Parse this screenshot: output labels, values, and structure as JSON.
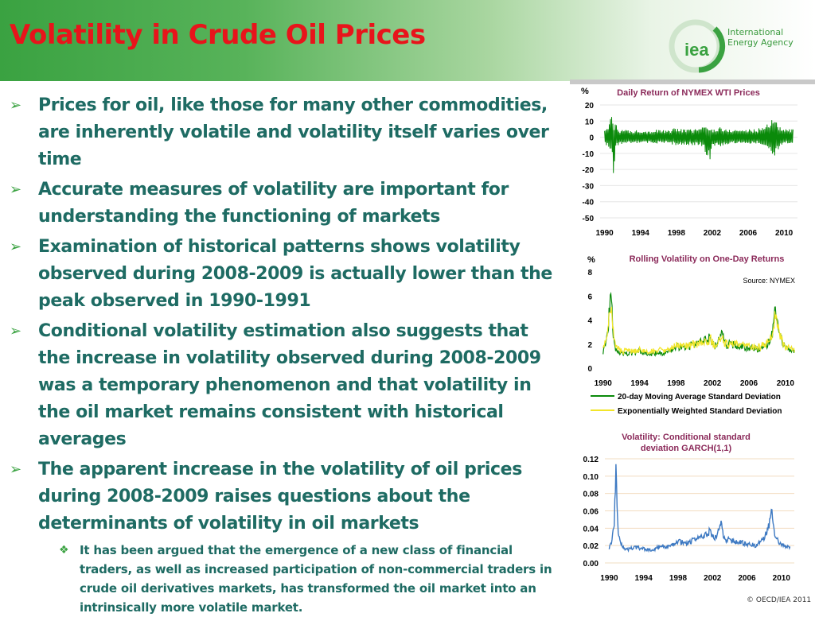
{
  "slide": {
    "title": "Volatility in Crude Oil Prices",
    "copyright": "© OECD/IEA 2011",
    "logo": {
      "mark": "iea",
      "line1": "International",
      "line2": "Energy Agency"
    }
  },
  "bullets": [
    "Prices for oil, like those for many other commodities, are inherently volatile and volatility itself varies over time",
    "Accurate measures of volatility are important for understanding the functioning of markets",
    "Examination of historical patterns shows volatility observed during 2008-2009 is actually lower than the peak observed in 1990-1991",
    "Conditional volatility estimation also suggests that the increase in volatility observed during 2008-2009 was a temporary phenomenon and that volatility in the oil market remains consistent with historical averages",
    "The apparent increase in the volatility of oil prices during 2008-2009 raises questions about the determinants of volatility in oil markets"
  ],
  "sub_bullets": [
    "It has been argued that the emergence of a new class of financial traders, as well as increased participation of non-commercial traders in crude oil derivatives markets, has transformed the oil market into an intrinsically more volatile market."
  ],
  "colors": {
    "title": "#e8141b",
    "text": "#1e6b63",
    "accent": "#3aa241",
    "chart_title": "#8b2a5a"
  },
  "chart_data": [
    {
      "type": "line",
      "title": "Daily Return of NYMEX WTI Prices",
      "ylabel": "%",
      "ylim": [
        -50,
        20
      ],
      "yticks": [
        "20",
        "10",
        "0",
        "-10",
        "-20",
        "-30",
        "-40",
        "-50"
      ],
      "xlim": [
        1989.5,
        2011.5
      ],
      "xticks": [
        "1990",
        "1994",
        "1998",
        "2002",
        "2006",
        "2010"
      ],
      "series": [
        {
          "color": "#0a8a0a",
          "x": [
            1990.0,
            1990.4,
            1990.7,
            1990.9,
            1991.05,
            1991.2,
            1991.5,
            1992,
            1993,
            1994,
            1995,
            1996,
            1997,
            1998,
            1999,
            2000,
            2001,
            2001.7,
            2002,
            2003,
            2003.2,
            2004,
            2005,
            2006,
            2007,
            2008,
            2008.6,
            2008.9,
            2009.2,
            2009.6,
            2010,
            2011
          ],
          "upper": [
            4,
            8,
            13,
            12,
            6,
            12,
            5,
            5,
            4,
            5,
            4,
            5,
            4,
            6,
            5,
            5,
            7,
            6,
            5,
            7,
            5,
            5,
            5,
            5,
            5,
            8,
            11,
            13,
            10,
            6,
            5,
            5
          ],
          "lower": [
            -4,
            -6,
            -8,
            -11,
            -38,
            -7,
            -5,
            -4,
            -4,
            -4,
            -4,
            -4,
            -4,
            -5,
            -5,
            -5,
            -6,
            -16,
            -5,
            -6,
            -5,
            -4,
            -4,
            -4,
            -4,
            -7,
            -10,
            -12,
            -9,
            -6,
            -4,
            -4
          ]
        }
      ],
      "grid": true
    },
    {
      "type": "line",
      "title": "Rolling Volatility on One-Day Returns",
      "ylabel": "%",
      "note": "Source: NYMEX",
      "ylim": [
        0,
        8
      ],
      "yticks": [
        "8",
        "6",
        "4",
        "2",
        "0"
      ],
      "xlim": [
        1989.5,
        2011.5
      ],
      "xticks": [
        "1990",
        "1994",
        "1998",
        "2002",
        "2006",
        "2010"
      ],
      "series": [
        {
          "name": "20-day Moving Average Standard Deviation",
          "color": "#0a8a0a",
          "x": [
            1990,
            1990.4,
            1990.7,
            1990.9,
            1991.1,
            1991.4,
            1992,
            1993,
            1994,
            1995,
            1996,
            1997,
            1998,
            1999,
            2000,
            2001,
            2001.8,
            2002.2,
            2003,
            2003.5,
            2004,
            2005,
            2006,
            2007,
            2008,
            2008.6,
            2008.9,
            2009.2,
            2009.6,
            2010,
            2011
          ],
          "values": [
            1.4,
            2.5,
            4.6,
            6.0,
            3.0,
            1.6,
            1.2,
            1.2,
            1.4,
            1.1,
            1.3,
            1.2,
            1.8,
            1.7,
            2.0,
            2.2,
            2.6,
            1.7,
            2.8,
            1.9,
            2.0,
            1.8,
            1.7,
            1.6,
            2.0,
            3.0,
            5.4,
            3.8,
            2.2,
            1.6,
            1.4
          ]
        },
        {
          "name": "Exponentially Weighted Standard Deviation",
          "color": "#f2e52a",
          "x": [
            1990,
            1990.4,
            1990.7,
            1990.9,
            1991.1,
            1991.4,
            1992,
            1993,
            1994,
            1995,
            1996,
            1997,
            1998,
            1999,
            2000,
            2001,
            2001.8,
            2002.2,
            2003,
            2003.5,
            2004,
            2005,
            2006,
            2007,
            2008,
            2008.6,
            2008.9,
            2009.2,
            2009.6,
            2010,
            2011
          ],
          "values": [
            1.5,
            2.6,
            4.2,
            5.2,
            3.2,
            1.8,
            1.4,
            1.4,
            1.5,
            1.3,
            1.5,
            1.4,
            1.9,
            1.8,
            2.0,
            2.1,
            2.4,
            1.8,
            2.5,
            2.0,
            2.0,
            1.9,
            1.8,
            1.7,
            2.1,
            2.9,
            4.8,
            3.6,
            2.3,
            1.7,
            1.5
          ]
        }
      ],
      "legend_position": "bottom",
      "grid": true
    },
    {
      "type": "line",
      "title_lines": [
        "Volatility: Conditional  standard",
        "deviation GARCH(1,1)"
      ],
      "ylim": [
        0,
        0.12
      ],
      "yticks": [
        "0.12",
        "0.10",
        "0.08",
        "0.06",
        "0.04",
        "0.02",
        "0.00"
      ],
      "xlim": [
        1989.5,
        2011.5
      ],
      "xticks": [
        "1990",
        "1994",
        "1998",
        "2002",
        "2006",
        "2010"
      ],
      "series": [
        {
          "color": "#3d79c2",
          "x": [
            1990,
            1990.3,
            1990.6,
            1990.8,
            1991.0,
            1991.2,
            1991.5,
            1992,
            1993,
            1994,
            1995,
            1996,
            1997,
            1998,
            1999,
            2000,
            2001,
            2001.8,
            2002.2,
            2003,
            2003.3,
            2004,
            2005,
            2006,
            2007,
            2008,
            2008.6,
            2008.9,
            2009.2,
            2009.6,
            2010,
            2011
          ],
          "values": [
            0.018,
            0.025,
            0.05,
            0.105,
            0.04,
            0.03,
            0.02,
            0.015,
            0.018,
            0.016,
            0.014,
            0.02,
            0.018,
            0.025,
            0.022,
            0.028,
            0.03,
            0.038,
            0.026,
            0.045,
            0.028,
            0.026,
            0.024,
            0.022,
            0.02,
            0.03,
            0.045,
            0.064,
            0.035,
            0.025,
            0.02,
            0.018
          ]
        }
      ],
      "grid": true
    }
  ]
}
